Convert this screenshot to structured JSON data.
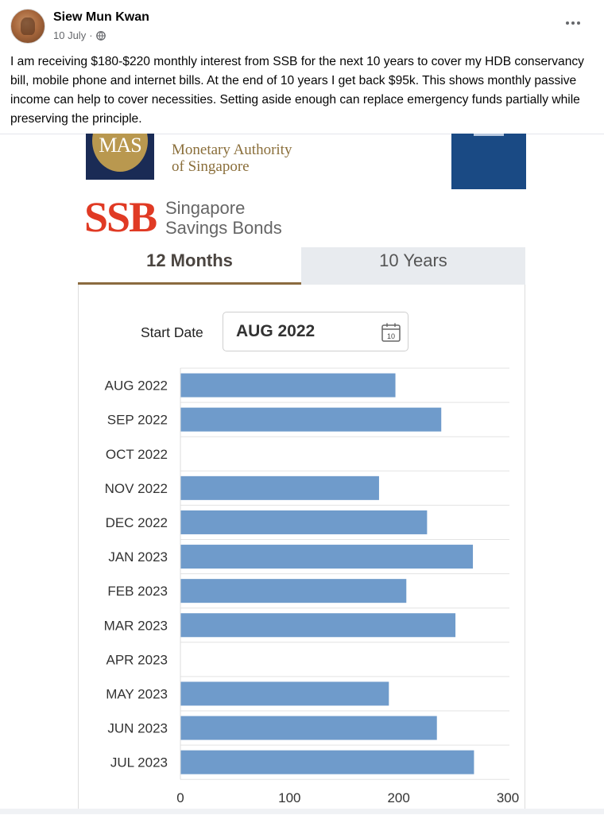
{
  "post": {
    "author": "Siew Mun Kwan",
    "date": "10 July",
    "separator": "·",
    "privacy_icon": "globe-icon",
    "more_icon": "more-horizontal-icon",
    "text": "I am receiving $180-$220 monthly interest from SSB for the next 10 years to cover my HDB conservancy bill, mobile phone and internet bills.  At the end of 10 years I get back $95k. This shows monthly passive income can help to cover necessities.  Setting aside enough can replace emergency funds partially while preserving the principle."
  },
  "image": {
    "mas_logo_text": "MAS",
    "mas_name_line1": "Monetary Authority",
    "mas_name_line2": "of Singapore",
    "ssb_logo_text": "SSB",
    "ssb_sub_line1": "Singapore",
    "ssb_sub_line2": "Savings Bonds",
    "tabs": [
      {
        "label": "12 Months",
        "active": true
      },
      {
        "label": "10 Years",
        "active": false
      }
    ],
    "start_date_label": "Start Date",
    "start_date_value": "AUG 2022",
    "calendar_icon_text": "10",
    "colors": {
      "bar": "#6f9bcb",
      "ssb_red": "#e03a24",
      "mas_navy": "#1a2b55",
      "mas_gold": "#b9984f",
      "tab_underline": "#8b6b3f"
    }
  },
  "chart_data": {
    "type": "bar",
    "orientation": "horizontal",
    "categories": [
      "AUG 2022",
      "SEP 2022",
      "OCT 2022",
      "NOV 2022",
      "DEC 2022",
      "JAN 2023",
      "FEB 2023",
      "MAR 2023",
      "APR 2023",
      "MAY 2023",
      "JUN 2023",
      "JUL 2023"
    ],
    "values": [
      197,
      239,
      0,
      182,
      226,
      268,
      207,
      252,
      0,
      191,
      235,
      269
    ],
    "xticks": [
      "0",
      "100",
      "200",
      "300"
    ],
    "xlim": [
      0,
      300
    ],
    "grid": true,
    "title": "",
    "xlabel": "",
    "ylabel": ""
  }
}
